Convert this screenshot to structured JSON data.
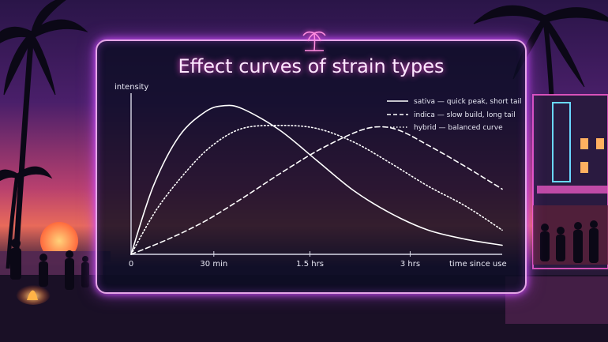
{
  "chart_data": {
    "type": "line",
    "title": "Effect curves of strain types",
    "ylabel": "intensity",
    "xlabel": "time since use",
    "x_ticks": [
      "0",
      "30 min",
      "1.5 hrs",
      "3 hrs"
    ],
    "grid": false,
    "legend_position": "top-right",
    "series": [
      {
        "name": "sativa — quick peak, short tail",
        "style": "solid",
        "points": [
          [
            0,
            0
          ],
          [
            0.06,
            0.45
          ],
          [
            0.13,
            0.78
          ],
          [
            0.2,
            0.94
          ],
          [
            0.25,
            0.98
          ],
          [
            0.3,
            0.96
          ],
          [
            0.4,
            0.82
          ],
          [
            0.5,
            0.62
          ],
          [
            0.6,
            0.42
          ],
          [
            0.7,
            0.27
          ],
          [
            0.8,
            0.16
          ],
          [
            0.9,
            0.1
          ],
          [
            1,
            0.06
          ]
        ]
      },
      {
        "name": "indica — slow build, long tail",
        "style": "dashed",
        "points": [
          [
            0,
            0
          ],
          [
            0.1,
            0.1
          ],
          [
            0.2,
            0.22
          ],
          [
            0.3,
            0.37
          ],
          [
            0.4,
            0.53
          ],
          [
            0.5,
            0.68
          ],
          [
            0.6,
            0.8
          ],
          [
            0.66,
            0.84
          ],
          [
            0.72,
            0.82
          ],
          [
            0.8,
            0.72
          ],
          [
            0.9,
            0.58
          ],
          [
            1,
            0.43
          ]
        ]
      },
      {
        "name": "hybrid — balanced curve",
        "style": "dotted",
        "points": [
          [
            0,
            0
          ],
          [
            0.07,
            0.3
          ],
          [
            0.15,
            0.55
          ],
          [
            0.22,
            0.72
          ],
          [
            0.3,
            0.83
          ],
          [
            0.4,
            0.85
          ],
          [
            0.5,
            0.83
          ],
          [
            0.6,
            0.74
          ],
          [
            0.7,
            0.6
          ],
          [
            0.8,
            0.45
          ],
          [
            0.9,
            0.32
          ],
          [
            1,
            0.16
          ]
        ]
      }
    ],
    "colors": {
      "line": "#ffffff",
      "panel_border": "#e6a6e8",
      "glow": "#d04cff",
      "title_glow": "#ff4fd8"
    }
  },
  "icons": {
    "badge": "palm-tree-icon"
  }
}
